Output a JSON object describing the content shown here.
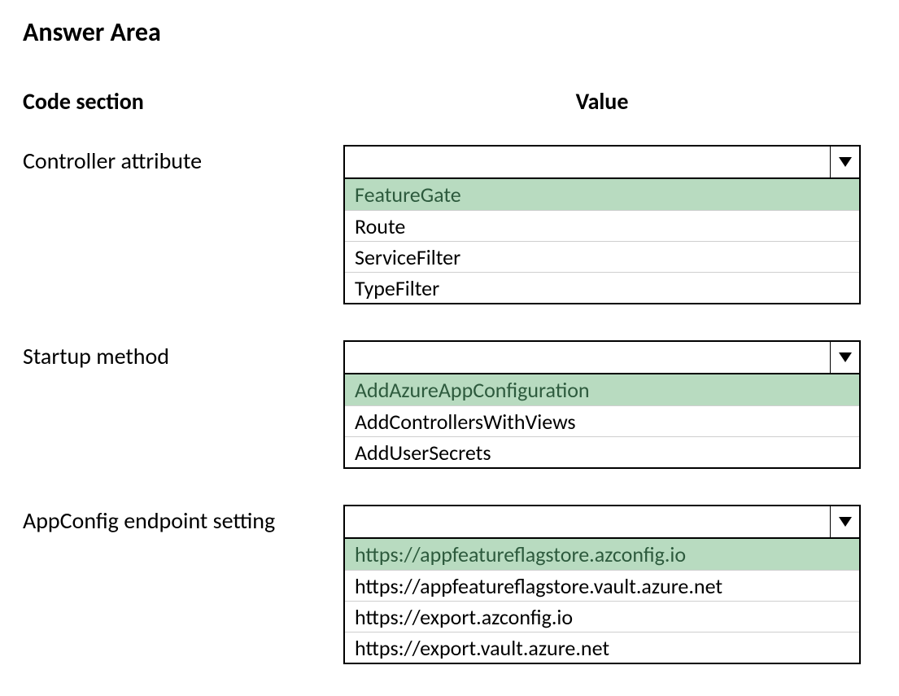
{
  "title": "Answer Area",
  "columns": {
    "left": "Code section",
    "right": "Value"
  },
  "highlight_color": "#b8dbc0",
  "highlight_text_color": "#2d5a3d",
  "border_color": "#000000",
  "option_divider_color": "#cfcfcf",
  "background_color": "#ffffff",
  "sections": [
    {
      "label": "Controller attribute",
      "options": [
        {
          "text": "FeatureGate",
          "highlighted": true
        },
        {
          "text": "Route",
          "highlighted": false
        },
        {
          "text": "ServiceFilter",
          "highlighted": false
        },
        {
          "text": "TypeFilter",
          "highlighted": false
        }
      ]
    },
    {
      "label": "Startup method",
      "options": [
        {
          "text": "AddAzureAppConfiguration",
          "highlighted": true
        },
        {
          "text": "AddControllersWithViews",
          "highlighted": false
        },
        {
          "text": "AddUserSecrets",
          "highlighted": false
        }
      ]
    },
    {
      "label": "AppConfig endpoint setting",
      "options": [
        {
          "text": "https://appfeatureflagstore.azconfig.io",
          "highlighted": true
        },
        {
          "text": "https://appfeatureflagstore.vault.azure.net",
          "highlighted": false
        },
        {
          "text": "https://export.azconfig.io",
          "highlighted": false
        },
        {
          "text": "https://export.vault.azure.net",
          "highlighted": false
        }
      ]
    }
  ]
}
